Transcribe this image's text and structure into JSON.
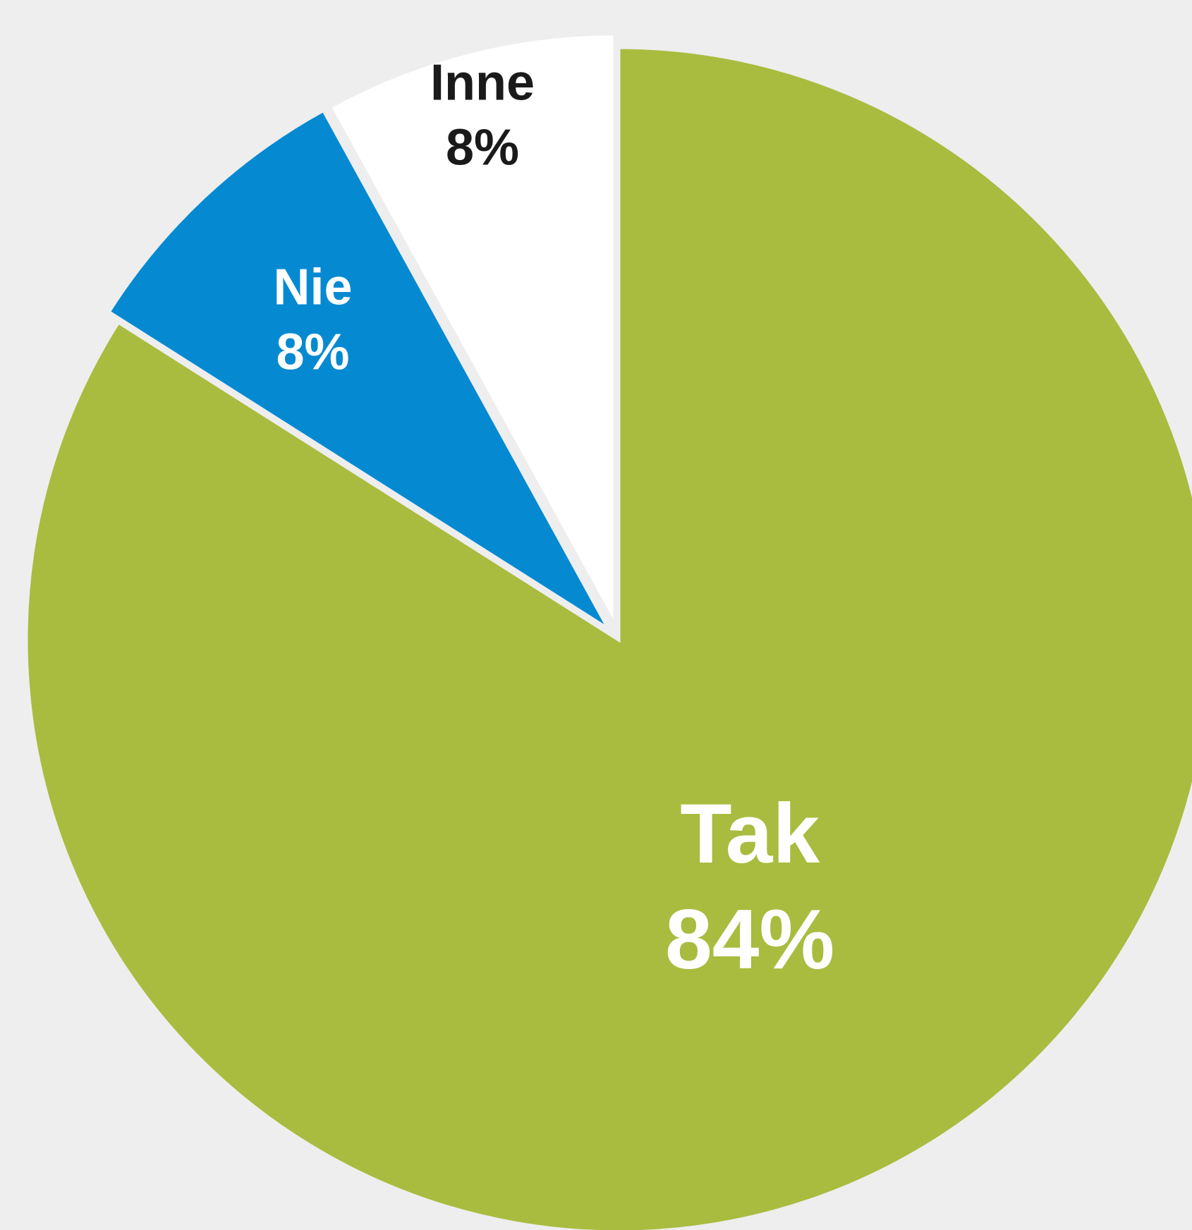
{
  "chart_data": {
    "type": "pie",
    "title": "",
    "slices": [
      {
        "label": "Tak",
        "value": 84,
        "display": "84%",
        "color": "#a9bc3f",
        "label_color": "#ffffff"
      },
      {
        "label": "Nie",
        "value": 8,
        "display": "8%",
        "color": "#058ad2",
        "label_color": "#ffffff"
      },
      {
        "label": "Inne",
        "value": 8,
        "display": "8%",
        "color": "#ffffff",
        "label_color": "#1a1a1a"
      }
    ],
    "exploded": [
      "Nie",
      "Inne"
    ],
    "background": "#eeeeee",
    "legend": "none"
  }
}
